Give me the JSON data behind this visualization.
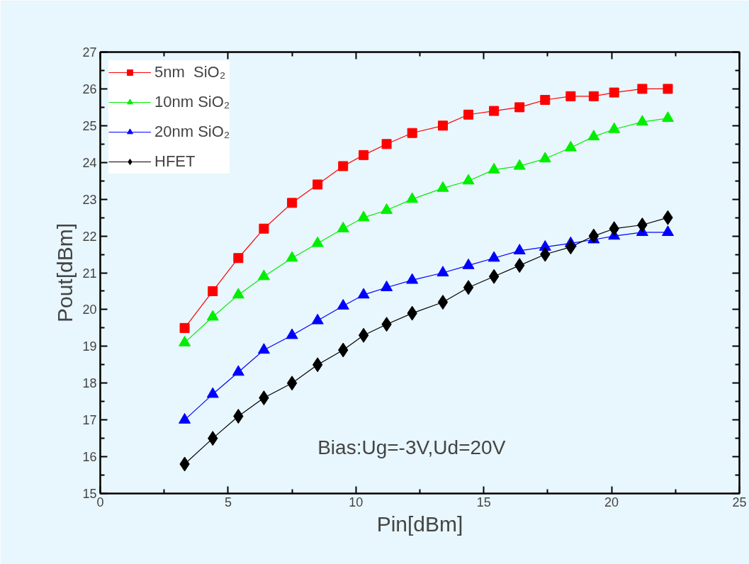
{
  "chart_data": {
    "type": "line",
    "xlabel": "Pin[dBm]",
    "ylabel": "Pout[dBm]",
    "x": [
      3.3,
      4.4,
      5.4,
      6.4,
      7.5,
      8.5,
      9.5,
      10.3,
      11.2,
      12.2,
      13.4,
      14.4,
      15.4,
      16.4,
      17.4,
      18.4,
      19.3,
      20.1,
      21.2,
      22.2
    ],
    "series": [
      {
        "name": "5nm  SiO₂",
        "color": "#ff0000",
        "marker": "square",
        "values": [
          19.5,
          20.5,
          21.4,
          22.2,
          22.9,
          23.4,
          23.9,
          24.2,
          24.5,
          24.8,
          25.0,
          25.3,
          25.4,
          25.5,
          25.7,
          25.8,
          25.8,
          25.9,
          26.0,
          26.0
        ]
      },
      {
        "name": "10nm SiO₂",
        "color": "#00ee00",
        "marker": "triangle",
        "values": [
          19.1,
          19.8,
          20.4,
          20.9,
          21.4,
          21.8,
          22.2,
          22.5,
          22.7,
          23.0,
          23.3,
          23.5,
          23.8,
          23.9,
          24.1,
          24.4,
          24.7,
          24.9,
          25.1,
          25.2
        ]
      },
      {
        "name": "20nm SiO₂",
        "color": "#0000ff",
        "marker": "triangle",
        "values": [
          17.0,
          17.7,
          18.3,
          18.9,
          19.3,
          19.7,
          20.1,
          20.4,
          20.6,
          20.8,
          21.0,
          21.2,
          21.4,
          21.6,
          21.7,
          21.8,
          21.9,
          22.0,
          22.1,
          22.1
        ]
      },
      {
        "name": "HFET",
        "color": "#000000",
        "marker": "diamond",
        "values": [
          15.8,
          16.5,
          17.1,
          17.6,
          18.0,
          18.5,
          18.9,
          19.3,
          19.6,
          19.9,
          20.2,
          20.6,
          20.9,
          21.2,
          21.5,
          21.7,
          22.0,
          22.2,
          22.3,
          22.5
        ]
      }
    ],
    "annotations": [
      "Bias:Ug=-3V,Ud=20V"
    ],
    "xlim": [
      0,
      25
    ],
    "xticks": [
      0,
      5,
      10,
      15,
      20,
      25
    ],
    "ylim": [
      15,
      27
    ],
    "yticks": [
      15,
      16,
      17,
      18,
      19,
      20,
      21,
      22,
      23,
      24,
      25,
      26,
      27
    ],
    "grid": false,
    "legend": "top left",
    "line_style": "solid"
  }
}
